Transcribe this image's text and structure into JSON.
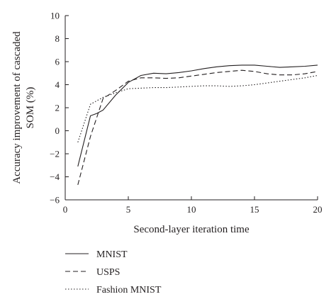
{
  "chart_data": {
    "type": "line",
    "xlabel": "Second-layer iteration time",
    "ylabel": [
      "Accuracy improvement of cascaded",
      "SOM (%)"
    ],
    "xlim": [
      0,
      20
    ],
    "ylim": [
      -6,
      10
    ],
    "xticks": [
      0,
      5,
      10,
      15,
      20
    ],
    "yticks": [
      -6,
      -4,
      -2,
      0,
      2,
      4,
      6,
      8,
      10
    ],
    "grid": false,
    "legend_position": "bottom-left",
    "series": [
      {
        "name": "MNIST",
        "dash": "solid",
        "x": [
          1,
          2,
          2.5,
          3,
          4,
          5,
          6,
          7,
          8,
          9,
          10,
          11,
          12,
          13,
          14,
          15,
          16,
          17,
          18,
          19,
          20
        ],
        "y": [
          -3.1,
          1.3,
          1.5,
          1.8,
          3.1,
          4.2,
          4.8,
          5.0,
          4.95,
          5.05,
          5.2,
          5.4,
          5.55,
          5.65,
          5.7,
          5.7,
          5.6,
          5.5,
          5.55,
          5.6,
          5.7
        ]
      },
      {
        "name": "USPS",
        "dash": "dashed",
        "x": [
          1,
          2,
          3,
          4,
          5,
          6,
          7,
          8,
          9,
          10,
          11,
          12,
          13,
          14,
          15,
          16,
          17,
          18,
          19,
          20
        ],
        "y": [
          -4.7,
          -0.5,
          2.8,
          3.5,
          4.3,
          4.6,
          4.6,
          4.55,
          4.6,
          4.75,
          4.9,
          5.05,
          5.15,
          5.25,
          5.15,
          4.95,
          4.85,
          4.85,
          4.95,
          5.15
        ]
      },
      {
        "name": "Fashion MNIST",
        "dash": "dotted",
        "x": [
          1,
          2,
          3,
          4,
          5,
          6,
          7,
          8,
          9,
          10,
          11,
          12,
          13,
          14,
          15,
          16,
          17,
          18,
          19,
          20
        ],
        "y": [
          -1.0,
          2.3,
          2.9,
          3.3,
          3.65,
          3.7,
          3.75,
          3.75,
          3.8,
          3.85,
          3.9,
          3.9,
          3.85,
          3.9,
          4.0,
          4.15,
          4.3,
          4.45,
          4.6,
          4.8
        ]
      }
    ]
  }
}
